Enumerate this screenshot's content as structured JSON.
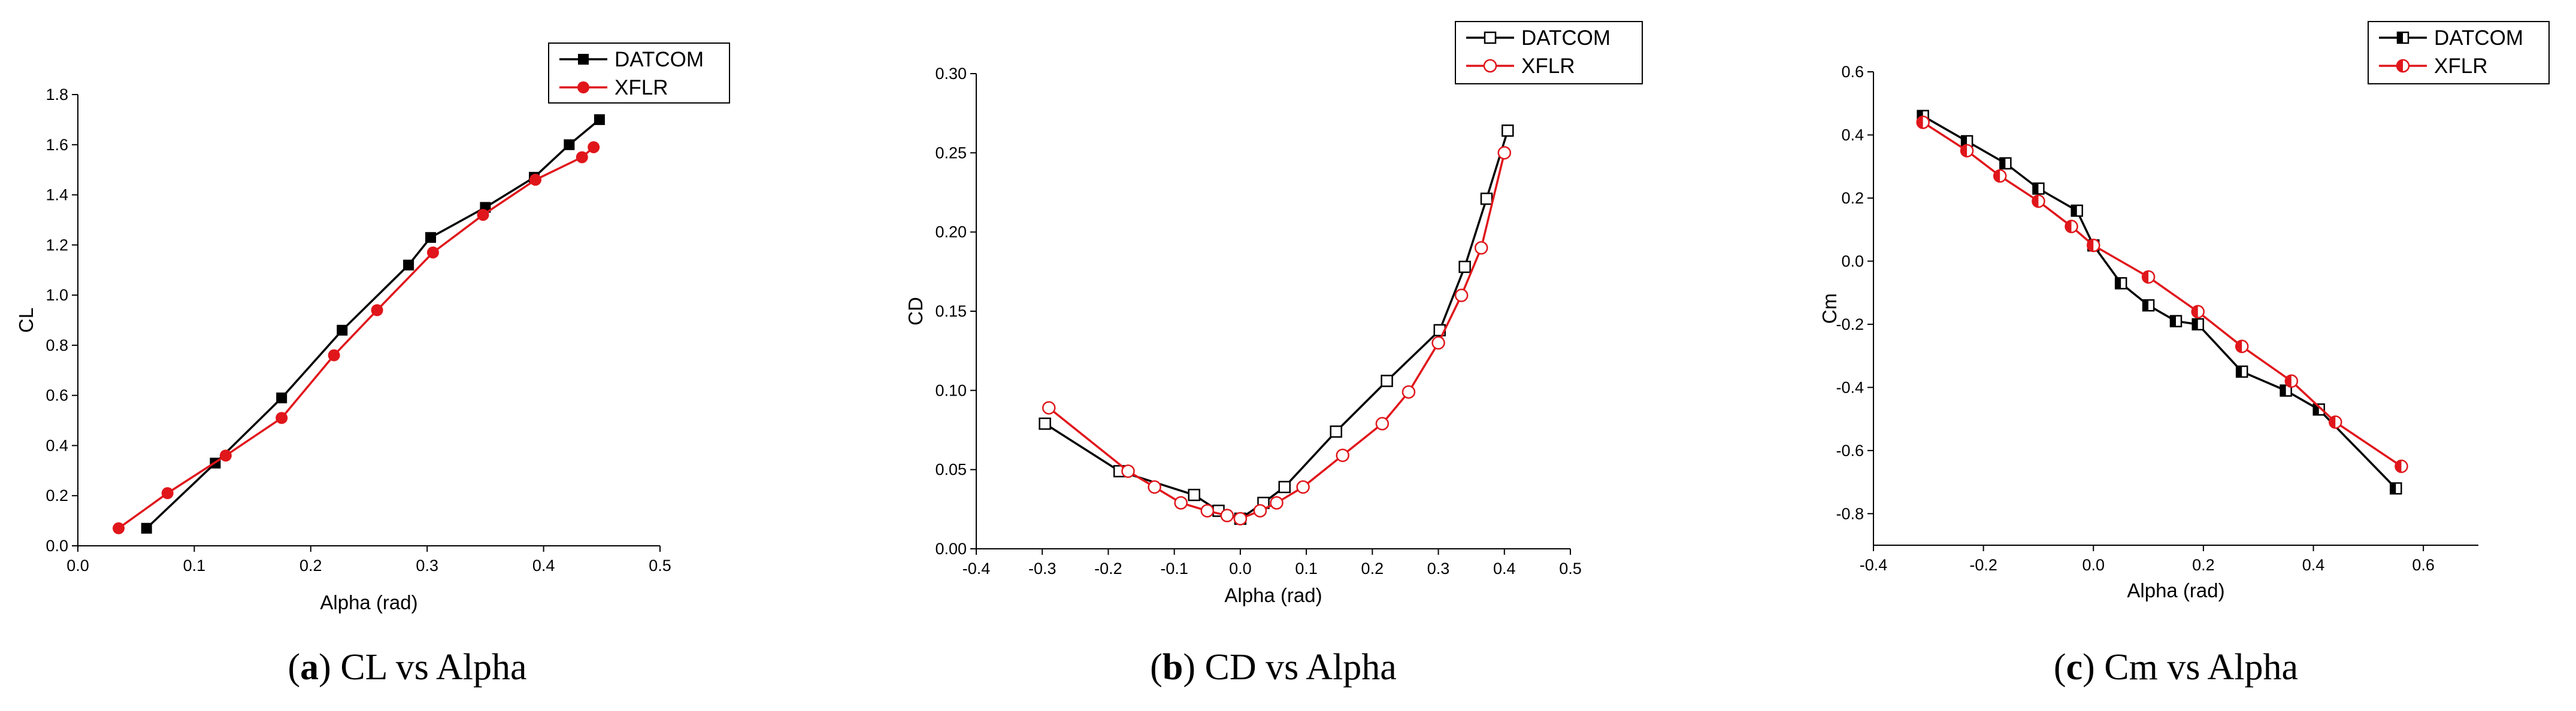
{
  "colors": {
    "datcom": "#000000",
    "xflr": "#e0161b",
    "axis": "#000000"
  },
  "chart_data": [
    {
      "type": "line",
      "id": "cl",
      "marker_style": "filled",
      "xlim": [
        0.0,
        0.5
      ],
      "ylim": [
        0.0,
        1.8
      ],
      "xticks": [
        0.0,
        0.1,
        0.2,
        0.3,
        0.4,
        0.5
      ],
      "yticks": [
        0.0,
        0.2,
        0.4,
        0.6,
        0.8,
        1.0,
        1.2,
        1.4,
        1.6,
        1.8
      ],
      "xtick_labels": [
        "0.0",
        "0.1",
        "0.2",
        "0.3",
        "0.4",
        "0.5"
      ],
      "ytick_labels": [
        "0.0",
        "0.2",
        "0.4",
        "0.6",
        "0.8",
        "1.0",
        "1.2",
        "1.4",
        "1.6",
        "1.8"
      ],
      "xlabel": "Alpha (rad)",
      "ylabel": "CL",
      "legend": [
        "DATCOM",
        "XFLR"
      ],
      "caption_letter": "a",
      "caption_text": " CL vs Alpha",
      "series": [
        {
          "name": "DATCOM",
          "x": [
            0.059,
            0.118,
            0.175,
            0.227,
            0.284,
            0.303,
            0.35,
            0.392,
            0.422,
            0.448
          ],
          "y": [
            0.07,
            0.33,
            0.59,
            0.86,
            1.12,
            1.23,
            1.35,
            1.47,
            1.6,
            1.7
          ]
        },
        {
          "name": "XFLR",
          "x": [
            0.035,
            0.077,
            0.127,
            0.175,
            0.22,
            0.257,
            0.305,
            0.348,
            0.393,
            0.433,
            0.443
          ],
          "y": [
            0.07,
            0.21,
            0.36,
            0.51,
            0.76,
            0.94,
            1.17,
            1.32,
            1.46,
            1.55,
            1.59
          ]
        }
      ]
    },
    {
      "type": "line",
      "id": "cd",
      "marker_style": "hollow",
      "xlim": [
        -0.4,
        0.5
      ],
      "ylim": [
        0.0,
        0.3
      ],
      "xticks": [
        -0.4,
        -0.3,
        -0.2,
        -0.1,
        0.0,
        0.1,
        0.2,
        0.3,
        0.4,
        0.5
      ],
      "yticks": [
        0.0,
        0.05,
        0.1,
        0.15,
        0.2,
        0.25,
        0.3
      ],
      "xtick_labels": [
        "-0.4",
        "-0.3",
        "-0.2",
        "-0.1",
        "0.0",
        "0.1",
        "0.2",
        "0.3",
        "0.4",
        "0.5"
      ],
      "ytick_labels": [
        "0.00",
        "0.05",
        "0.10",
        "0.15",
        "0.20",
        "0.25",
        "0.30"
      ],
      "xlabel": "Alpha (rad)",
      "ylabel": "CD",
      "legend": [
        "DATCOM",
        "XFLR"
      ],
      "caption_letter": "b",
      "caption_text": " CD vs Alpha",
      "series": [
        {
          "name": "DATCOM",
          "x": [
            -0.296,
            -0.183,
            -0.07,
            -0.033,
            0.0,
            0.035,
            0.067,
            0.145,
            0.222,
            0.302,
            0.34,
            0.373,
            0.405
          ],
          "y": [
            0.079,
            0.049,
            0.034,
            0.024,
            0.019,
            0.029,
            0.039,
            0.074,
            0.106,
            0.138,
            0.178,
            0.221,
            0.264
          ]
        },
        {
          "name": "XFLR",
          "x": [
            -0.29,
            -0.17,
            -0.13,
            -0.09,
            -0.05,
            -0.02,
            0.0,
            0.03,
            0.055,
            0.095,
            0.155,
            0.215,
            0.255,
            0.3,
            0.335,
            0.365,
            0.4
          ],
          "y": [
            0.089,
            0.049,
            0.039,
            0.029,
            0.024,
            0.021,
            0.019,
            0.024,
            0.029,
            0.039,
            0.059,
            0.079,
            0.099,
            0.13,
            0.16,
            0.19,
            0.25
          ]
        }
      ]
    },
    {
      "type": "line",
      "id": "cm",
      "marker_style": "half",
      "xlim": [
        -0.4,
        0.7
      ],
      "ylim": [
        -0.9,
        0.6
      ],
      "xticks": [
        -0.4,
        -0.2,
        0.0,
        0.2,
        0.4,
        0.6
      ],
      "yticks": [
        -0.8,
        -0.6,
        -0.4,
        -0.2,
        0.0,
        0.2,
        0.4,
        0.6
      ],
      "xtick_labels": [
        "-0.4",
        "-0.2",
        "0.0",
        "0.2",
        "0.4",
        "0.6"
      ],
      "ytick_labels": [
        "-0.8",
        "-0.6",
        "-0.4",
        "-0.2",
        "0.0",
        "0.2",
        "0.4",
        "0.6"
      ],
      "xlabel": "Alpha (rad)",
      "ylabel": "Cm",
      "legend": [
        "DATCOM",
        "XFLR"
      ],
      "caption_letter": "c",
      "caption_text": " Cm vs Alpha",
      "series": [
        {
          "name": "DATCOM",
          "x": [
            -0.31,
            -0.23,
            -0.16,
            -0.1,
            -0.03,
            0.0,
            0.05,
            0.1,
            0.15,
            0.19,
            0.27,
            0.35,
            0.41,
            0.55
          ],
          "y": [
            0.46,
            0.38,
            0.31,
            0.23,
            0.16,
            0.05,
            -0.07,
            -0.14,
            -0.19,
            -0.2,
            -0.35,
            -0.41,
            -0.47,
            -0.72
          ]
        },
        {
          "name": "XFLR",
          "x": [
            -0.31,
            -0.23,
            -0.17,
            -0.1,
            -0.04,
            0.0,
            0.1,
            0.19,
            0.27,
            0.36,
            0.44,
            0.56
          ],
          "y": [
            0.44,
            0.35,
            0.27,
            0.19,
            0.11,
            0.05,
            -0.05,
            -0.16,
            -0.27,
            -0.38,
            -0.51,
            -0.65
          ]
        }
      ]
    }
  ]
}
